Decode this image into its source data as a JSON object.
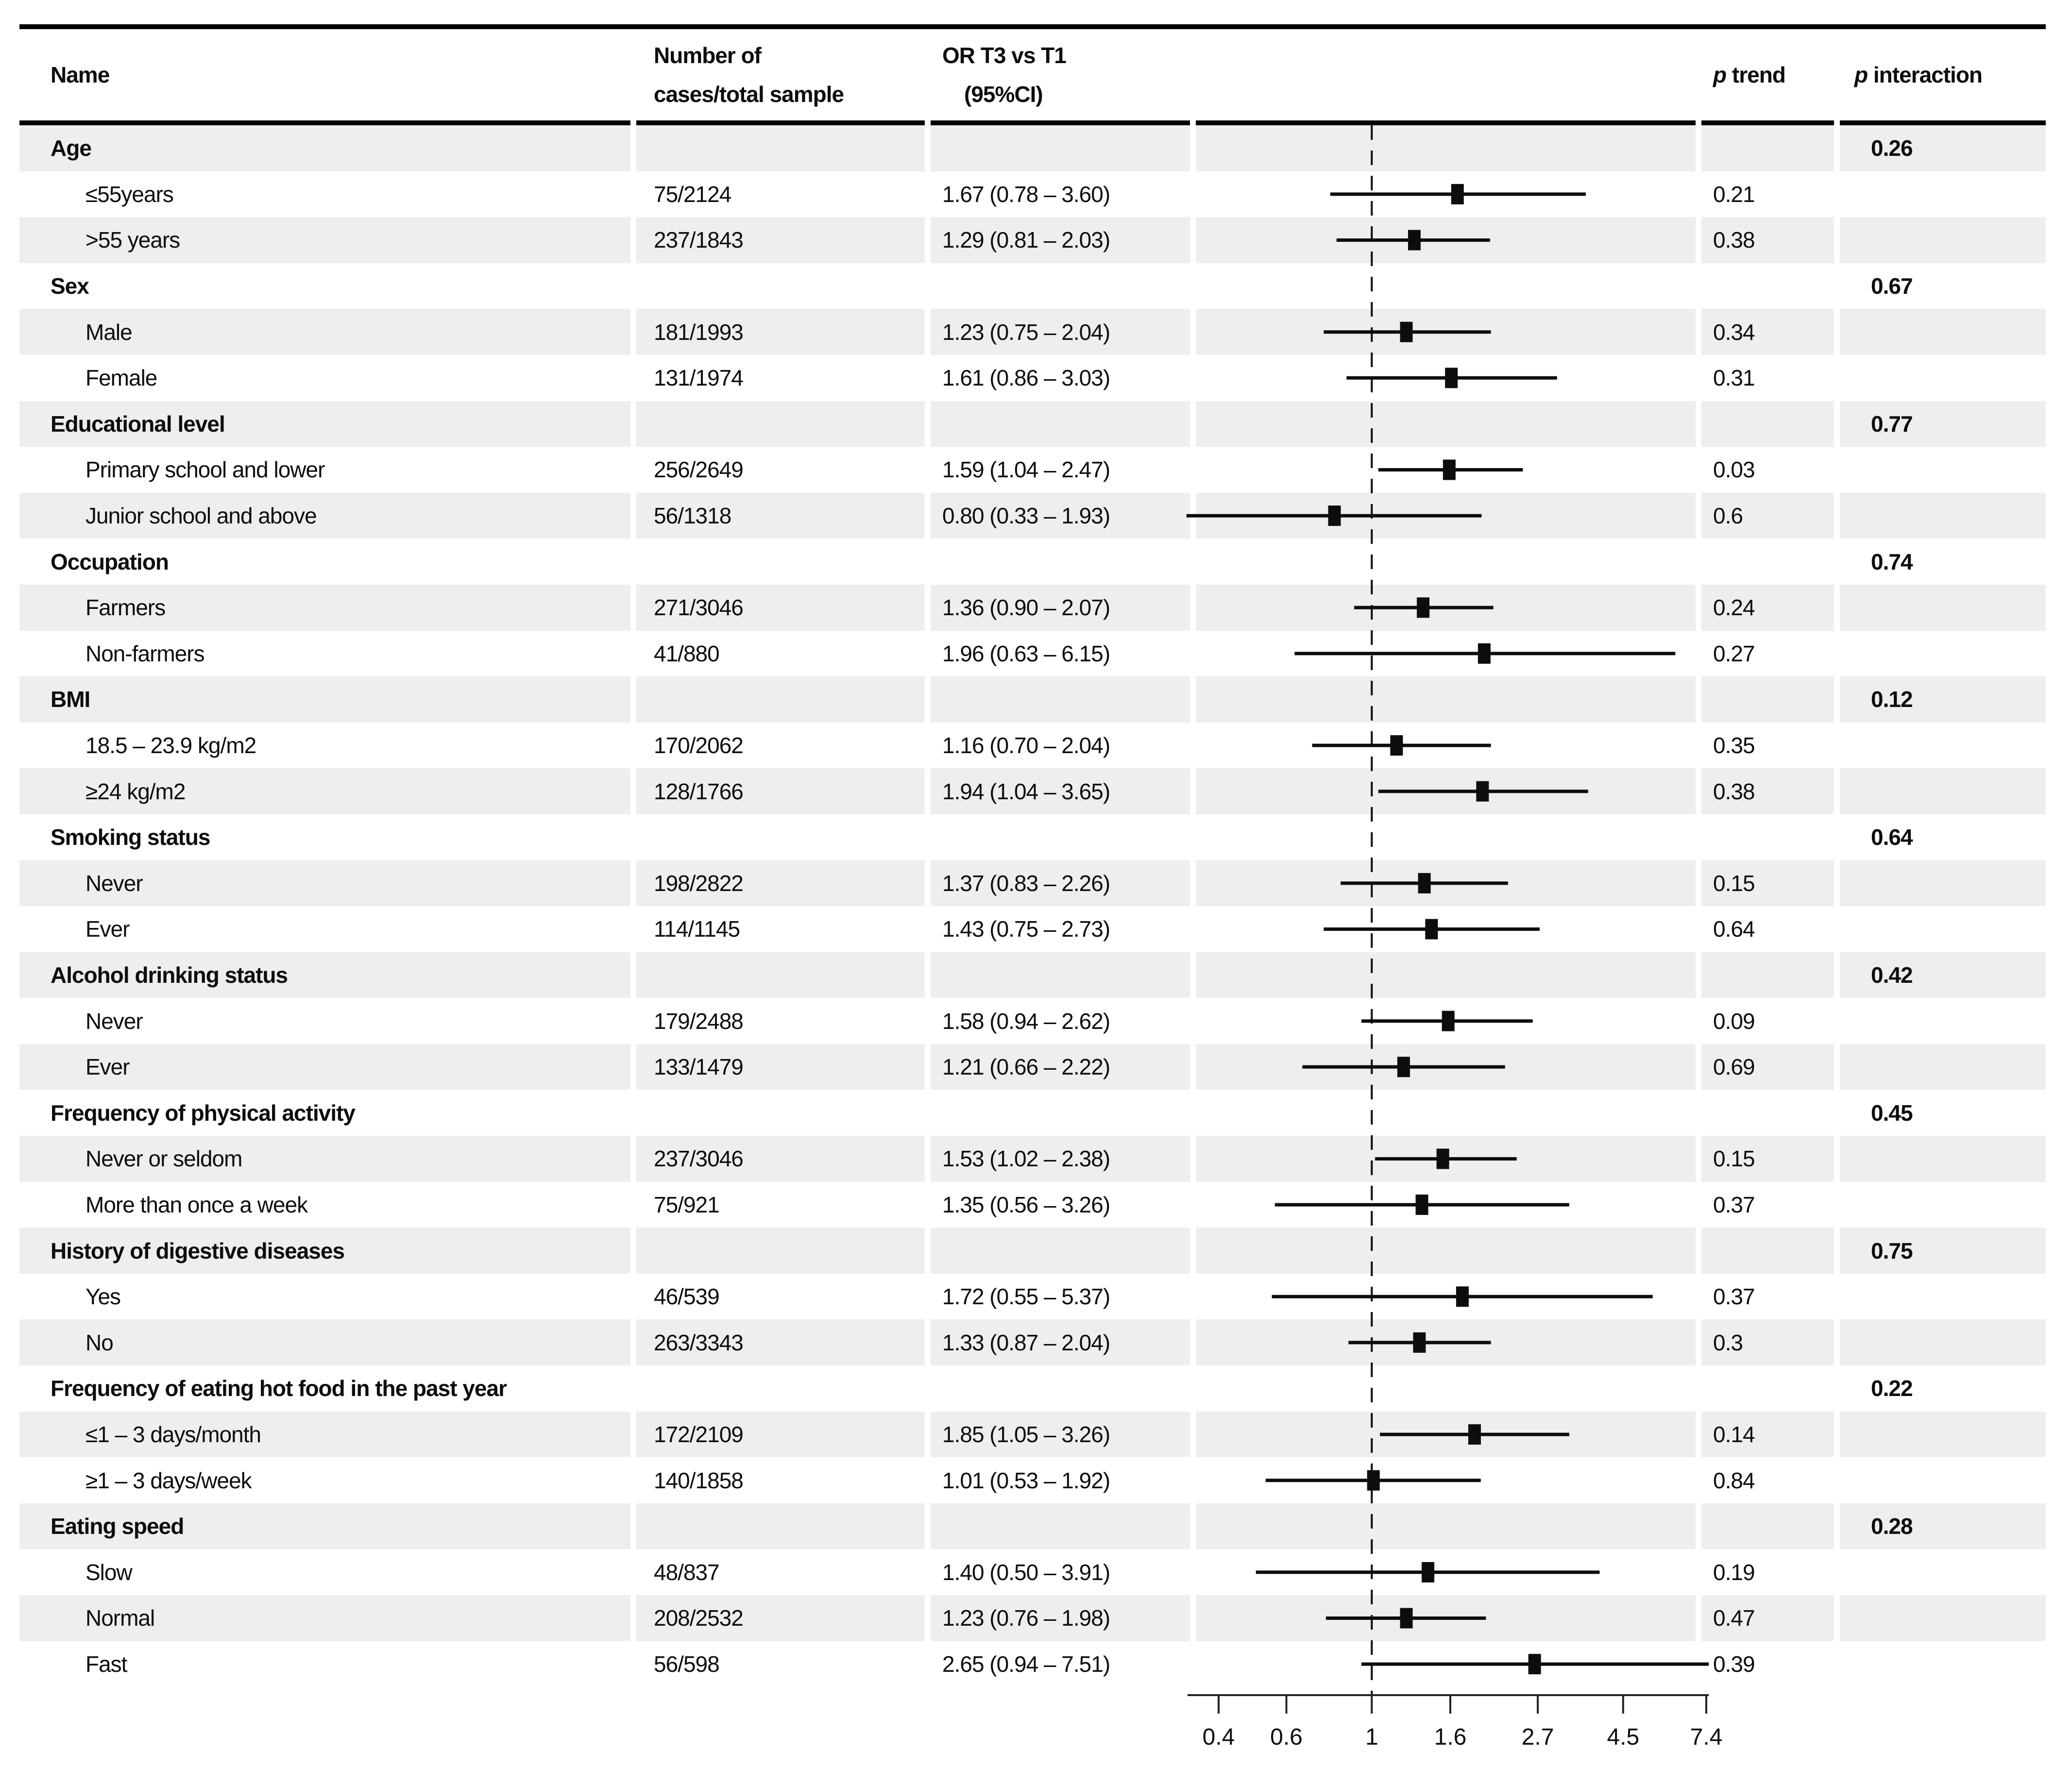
{
  "header": {
    "name": "Name",
    "cases_line1": "Number of",
    "cases_line2": "cases/total sample",
    "or_line1": "OR T3 vs T1",
    "or_line2": "(95%CI)",
    "p_italic": "p",
    "trend": "trend",
    "interaction": "interaction"
  },
  "colors": {
    "stripe": "#ecefee",
    "ink": "#0d0d0d"
  },
  "chart_data": {
    "type": "forest",
    "x_scale": "log",
    "x_ticks": [
      "0.4",
      "0.6",
      "1",
      "1.6",
      "2.7",
      "4.5",
      "7.4"
    ],
    "x_tick_values": [
      0.4,
      0.6,
      1,
      1.6,
      2.7,
      4.5,
      7.4
    ],
    "reference_value": 1,
    "xlim": [
      0.35,
      7.6
    ],
    "columns": [
      "Name",
      "Number of cases/total sample",
      "OR T3 vs T1 (95%CI)",
      "p trend",
      "p interaction"
    ],
    "rows": [
      {
        "type": "group",
        "label": "Age",
        "p_interaction": "0.26"
      },
      {
        "type": "item",
        "label": "≤55years",
        "cases": "75/2124",
        "or_ci": "1.67 (0.78 – 3.60)",
        "or": 1.67,
        "lo": 0.78,
        "hi": 3.6,
        "p_trend": "0.21"
      },
      {
        "type": "item",
        "label": ">55 years",
        "cases": "237/1843",
        "or_ci": "1.29 (0.81 – 2.03)",
        "or": 1.29,
        "lo": 0.81,
        "hi": 2.03,
        "p_trend": "0.38"
      },
      {
        "type": "group",
        "label": "Sex",
        "p_interaction": "0.67"
      },
      {
        "type": "item",
        "label": "Male",
        "cases": "181/1993",
        "or_ci": "1.23 (0.75 – 2.04)",
        "or": 1.23,
        "lo": 0.75,
        "hi": 2.04,
        "p_trend": "0.34"
      },
      {
        "type": "item",
        "label": "Female",
        "cases": "131/1974",
        "or_ci": "1.61 (0.86 – 3.03)",
        "or": 1.61,
        "lo": 0.86,
        "hi": 3.03,
        "p_trend": "0.31"
      },
      {
        "type": "group",
        "label": "Educational level",
        "p_interaction": "0.77"
      },
      {
        "type": "item",
        "label": "Primary school and lower",
        "cases": "256/2649",
        "or_ci": "1.59 (1.04 – 2.47)",
        "or": 1.59,
        "lo": 1.04,
        "hi": 2.47,
        "p_trend": "0.03"
      },
      {
        "type": "item",
        "label": "Junior school and above",
        "cases": "56/1318",
        "or_ci": "0.80 (0.33 – 1.93)",
        "or": 0.8,
        "lo": 0.33,
        "hi": 1.93,
        "p_trend": "0.6"
      },
      {
        "type": "group",
        "label": "Occupation",
        "p_interaction": "0.74"
      },
      {
        "type": "item",
        "label": "Farmers",
        "cases": "271/3046",
        "or_ci": "1.36 (0.90 – 2.07)",
        "or": 1.36,
        "lo": 0.9,
        "hi": 2.07,
        "p_trend": "0.24"
      },
      {
        "type": "item",
        "label": "Non-farmers",
        "cases": "41/880",
        "or_ci": "1.96 (0.63 – 6.15)",
        "or": 1.96,
        "lo": 0.63,
        "hi": 6.15,
        "p_trend": "0.27"
      },
      {
        "type": "group",
        "label": "BMI",
        "p_interaction": "0.12"
      },
      {
        "type": "item",
        "label": "18.5 – 23.9 kg/m2",
        "cases": "170/2062",
        "or_ci": "1.16 (0.70 – 2.04)",
        "or": 1.16,
        "lo": 0.7,
        "hi": 2.04,
        "p_trend": "0.35"
      },
      {
        "type": "item",
        "label": "≥24 kg/m2",
        "cases": "128/1766",
        "or_ci": "1.94 (1.04 – 3.65)",
        "or": 1.94,
        "lo": 1.04,
        "hi": 3.65,
        "p_trend": "0.38"
      },
      {
        "type": "group",
        "label": "Smoking status",
        "p_interaction": "0.64"
      },
      {
        "type": "item",
        "label": "Never",
        "cases": "198/2822",
        "or_ci": "1.37 (0.83 – 2.26)",
        "or": 1.37,
        "lo": 0.83,
        "hi": 2.26,
        "p_trend": "0.15"
      },
      {
        "type": "item",
        "label": "Ever",
        "cases": "114/1145",
        "or_ci": "1.43 (0.75 – 2.73)",
        "or": 1.43,
        "lo": 0.75,
        "hi": 2.73,
        "p_trend": "0.64"
      },
      {
        "type": "group",
        "label": "Alcohol drinking status",
        "p_interaction": "0.42"
      },
      {
        "type": "item",
        "label": "Never",
        "cases": "179/2488",
        "or_ci": "1.58 (0.94 – 2.62)",
        "or": 1.58,
        "lo": 0.94,
        "hi": 2.62,
        "p_trend": "0.09"
      },
      {
        "type": "item",
        "label": "Ever",
        "cases": "133/1479",
        "or_ci": "1.21 (0.66 – 2.22)",
        "or": 1.21,
        "lo": 0.66,
        "hi": 2.22,
        "p_trend": "0.69"
      },
      {
        "type": "group",
        "label": "Frequency of physical activity",
        "p_interaction": "0.45"
      },
      {
        "type": "item",
        "label": "Never or seldom",
        "cases": "237/3046",
        "or_ci": "1.53 (1.02 – 2.38)",
        "or": 1.53,
        "lo": 1.02,
        "hi": 2.38,
        "p_trend": "0.15"
      },
      {
        "type": "item",
        "label": "More than once a week",
        "cases": "75/921",
        "or_ci": "1.35 (0.56 – 3.26)",
        "or": 1.35,
        "lo": 0.56,
        "hi": 3.26,
        "p_trend": "0.37"
      },
      {
        "type": "group",
        "label": "History of digestive diseases",
        "p_interaction": "0.75"
      },
      {
        "type": "item",
        "label": "Yes",
        "cases": "46/539",
        "or_ci": "1.72 (0.55 – 5.37)",
        "or": 1.72,
        "lo": 0.55,
        "hi": 5.37,
        "p_trend": "0.37"
      },
      {
        "type": "item",
        "label": "No",
        "cases": "263/3343",
        "or_ci": "1.33 (0.87 – 2.04)",
        "or": 1.33,
        "lo": 0.87,
        "hi": 2.04,
        "p_trend": "0.3"
      },
      {
        "type": "group",
        "label": "Frequency of eating hot food in the past year",
        "p_interaction": "0.22"
      },
      {
        "type": "item",
        "label": "≤1 – 3 days/month",
        "cases": "172/2109",
        "or_ci": "1.85 (1.05 – 3.26)",
        "or": 1.85,
        "lo": 1.05,
        "hi": 3.26,
        "p_trend": "0.14"
      },
      {
        "type": "item",
        "label": "≥1 – 3 days/week",
        "cases": "140/1858",
        "or_ci": "1.01 (0.53 – 1.92)",
        "or": 1.01,
        "lo": 0.53,
        "hi": 1.92,
        "p_trend": "0.84"
      },
      {
        "type": "group",
        "label": "Eating speed",
        "p_interaction": "0.28"
      },
      {
        "type": "item",
        "label": "Slow",
        "cases": "48/837",
        "or_ci": "1.40 (0.50 – 3.91)",
        "or": 1.4,
        "lo": 0.5,
        "hi": 3.91,
        "p_trend": "0.19"
      },
      {
        "type": "item",
        "label": "Normal",
        "cases": "208/2532",
        "or_ci": "1.23 (0.76 – 1.98)",
        "or": 1.23,
        "lo": 0.76,
        "hi": 1.98,
        "p_trend": "0.47"
      },
      {
        "type": "item",
        "label": "Fast",
        "cases": "56/598",
        "or_ci": "2.65 (0.94 – 7.51)",
        "or": 2.65,
        "lo": 0.94,
        "hi": 7.51,
        "p_trend": "0.39"
      }
    ]
  }
}
